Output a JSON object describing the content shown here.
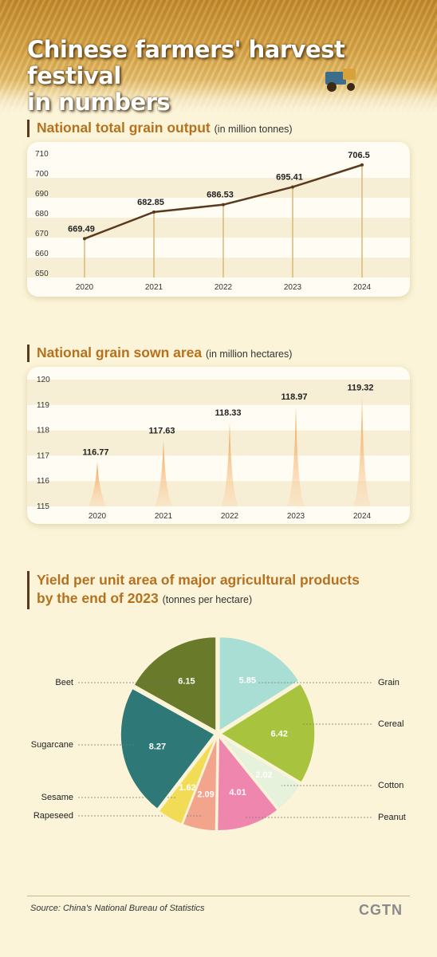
{
  "header": {
    "title_line1": "Chinese farmers' harvest festival",
    "title_line2": "in numbers"
  },
  "charts_text": {
    "c1_title": "National total grain output",
    "c1_unit": "(in million tonnes)",
    "c2_title": "National grain sown area",
    "c2_unit": "(in million hectares)",
    "c3_title_line1": "Yield per unit area of major agricultural products",
    "c3_title_line2": "by the end of 2023",
    "c3_unit": "(tonnes per hectare)"
  },
  "footer": {
    "source": "Source: China's National Bureau of Statistics",
    "logo": "CGTN"
  },
  "colors": {
    "line": "#5a3a1c",
    "accent_title": "#b5711f",
    "spike": "#f39a45"
  },
  "chart_data": [
    {
      "type": "line",
      "title": "National total grain output",
      "ylabel": "in million tonnes",
      "x": [
        "2020",
        "2021",
        "2022",
        "2023",
        "2024"
      ],
      "values": [
        669.49,
        682.85,
        686.53,
        695.41,
        706.5
      ],
      "value_labels": [
        "669.49",
        "682.85",
        "686.53",
        "695.41",
        "706.5"
      ],
      "yticks": [
        "650",
        "660",
        "670",
        "680",
        "690",
        "700",
        "710"
      ],
      "ylim": [
        650,
        710
      ],
      "grid": true
    },
    {
      "type": "bar",
      "title": "National grain sown area",
      "ylabel": "in million hectares",
      "categories": [
        "2020",
        "2021",
        "2022",
        "2023",
        "2024"
      ],
      "values": [
        116.77,
        117.63,
        118.33,
        118.97,
        119.32
      ],
      "value_labels": [
        "116.77",
        "117.63",
        "118.33",
        "118.97",
        "119.32"
      ],
      "yticks": [
        "115",
        "116",
        "117",
        "118",
        "119",
        "120"
      ],
      "ylim": [
        115,
        120
      ],
      "grid": true
    },
    {
      "type": "pie",
      "title": "Yield per unit area of major agricultural products by the end of 2023",
      "slices": [
        {
          "label": "Grain",
          "value": 5.85,
          "value_label": "5.85",
          "color": "#a9ded5"
        },
        {
          "label": "Cereal",
          "value": 6.42,
          "value_label": "6.42",
          "color": "#a8c43e"
        },
        {
          "label": "Cotton",
          "value": 2.02,
          "value_label": "2.02",
          "color": "#e6f2dc"
        },
        {
          "label": "Peanut",
          "value": 4.01,
          "value_label": "4.01",
          "color": "#ef86ad"
        },
        {
          "label": "Rapeseed",
          "value": 2.09,
          "value_label": "2.09",
          "color": "#f2a48c"
        },
        {
          "label": "Sesame",
          "value": 1.62,
          "value_label": "1.62",
          "color": "#f3dc55"
        },
        {
          "label": "Sugarcane",
          "value": 8.27,
          "value_label": "8.27",
          "color": "#2f7878"
        },
        {
          "label": "Beet",
          "value": 6.15,
          "value_label": "6.15",
          "color": "#697b2a"
        }
      ]
    }
  ]
}
